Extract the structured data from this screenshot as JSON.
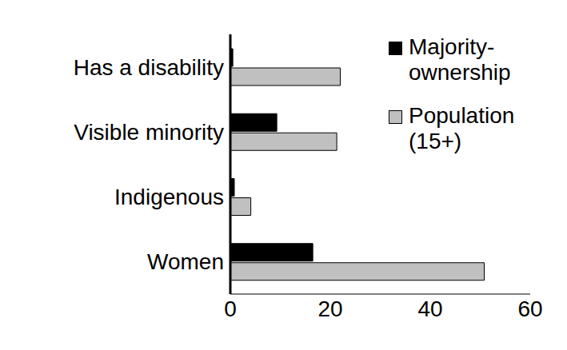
{
  "chart_data": {
    "type": "bar",
    "orientation": "horizontal",
    "categories": [
      "Has a disability",
      "Visible minority",
      "Indigenous",
      "Women"
    ],
    "series": [
      {
        "name": "Majority-ownership",
        "color": "#000000",
        "values": [
          0.5,
          9.3,
          0.8,
          16.5
        ]
      },
      {
        "name": "Population (15+)",
        "color": "#c0c0c0",
        "values": [
          22,
          21.3,
          4.1,
          50.8
        ]
      }
    ],
    "xlim": [
      0,
      60
    ],
    "xticks": [
      0,
      20,
      40,
      60
    ],
    "grid": false,
    "legend": "top-right"
  }
}
